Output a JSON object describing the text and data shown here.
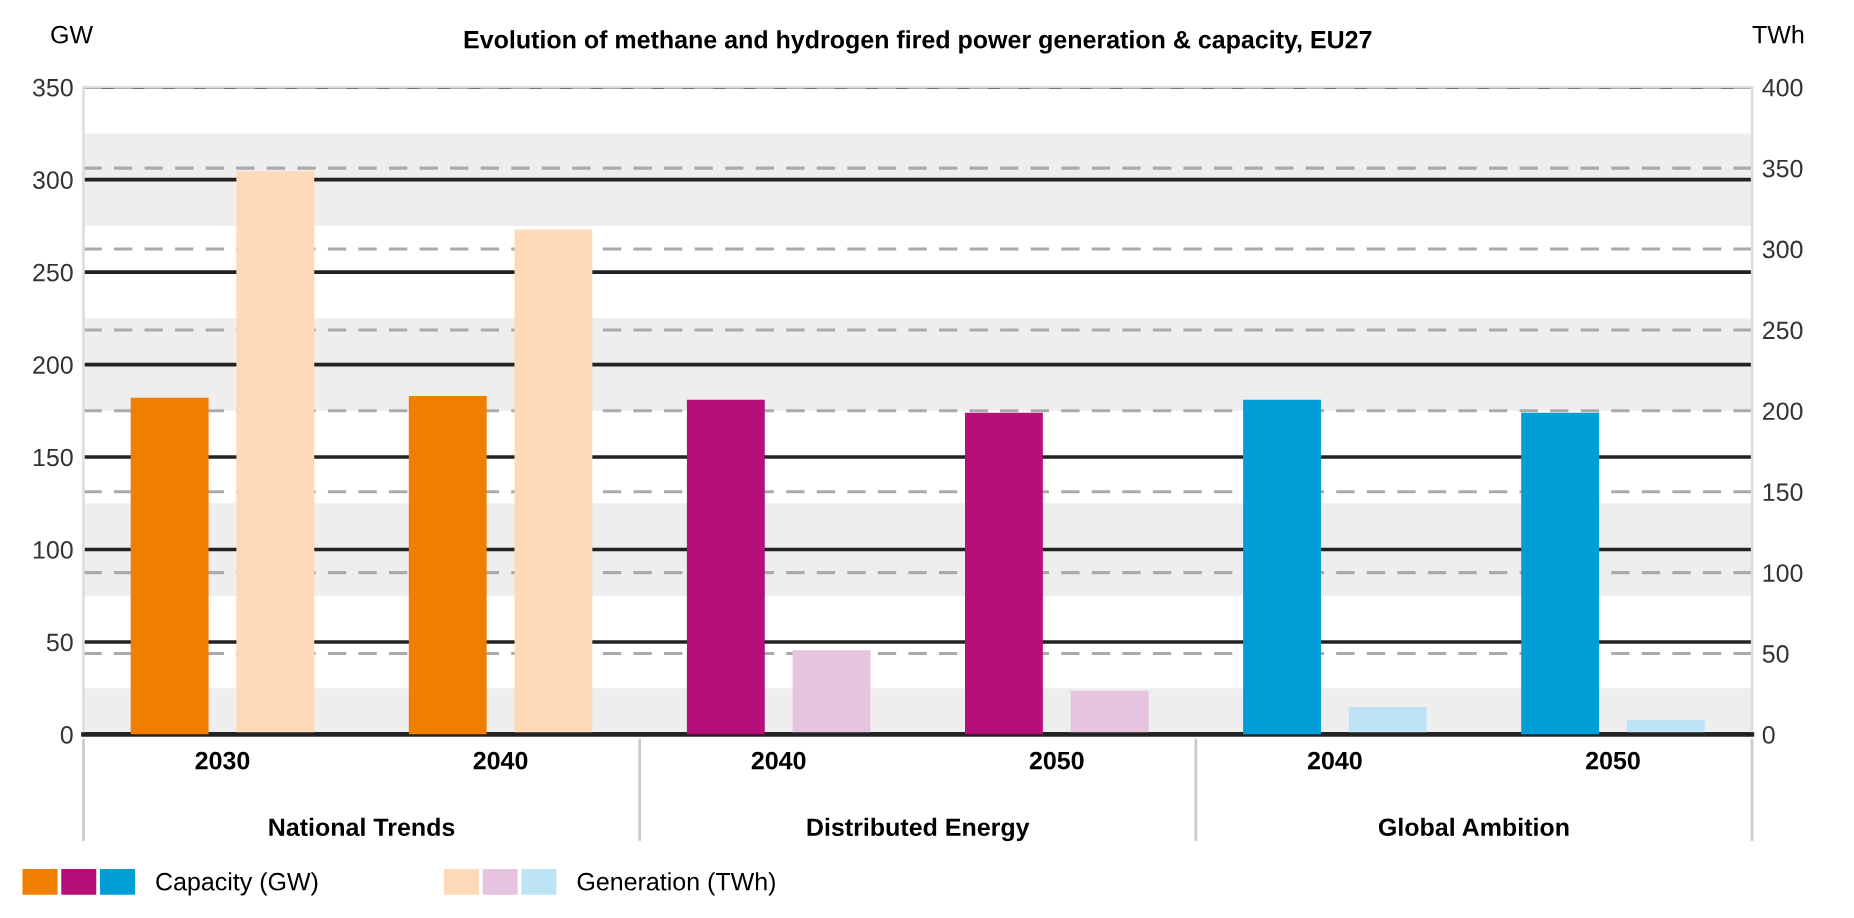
{
  "chart_data": {
    "type": "bar",
    "title": "Evolution of methane and hydrogen fired power generation & capacity, EU27",
    "ylabel": "GW",
    "y2label": "TWh",
    "categories": [
      "2030",
      "2040",
      "2040",
      "2050",
      "2040",
      "2050"
    ],
    "annotations": [
      "National Trends",
      "Distributed Energy",
      "Global Ambition"
    ],
    "series": [
      {
        "name": "Capacity (GW)",
        "colors": [
          "#f07f00",
          "#f07f00",
          "#b5107a",
          "#b5107a",
          "#009ed6",
          "#009ed6"
        ],
        "values": [
          182,
          183,
          181,
          174,
          181,
          174
        ]
      },
      {
        "name": "Generation (TWh)",
        "axis": "y2",
        "colors": [
          "#fdd9b8",
          "#fdd9b8",
          "#e6c3de",
          "#e6c3de",
          "#bde4f6",
          "#bde4f6"
        ],
        "values": [
          348,
          312,
          52,
          27,
          17,
          9
        ]
      }
    ],
    "ylim": [
      0,
      350
    ],
    "yticks": [
      0,
      50,
      100,
      150,
      200,
      250,
      300,
      350
    ],
    "y2lim": [
      0,
      400
    ],
    "y2ticks": [
      0,
      50,
      100,
      150,
      200,
      250,
      300,
      350,
      400
    ],
    "bands": [
      {
        "axis": "y",
        "from": 0,
        "to": 25,
        "color": "#eeeeee"
      },
      {
        "axis": "y",
        "from": 75,
        "to": 125,
        "color": "#eeeeee"
      },
      {
        "axis": "y",
        "from": 175,
        "to": 225,
        "color": "#eeeeee"
      },
      {
        "axis": "y",
        "from": 275,
        "to": 325,
        "color": "#eeeeee"
      }
    ],
    "grid": true,
    "legend": "bottom left"
  }
}
